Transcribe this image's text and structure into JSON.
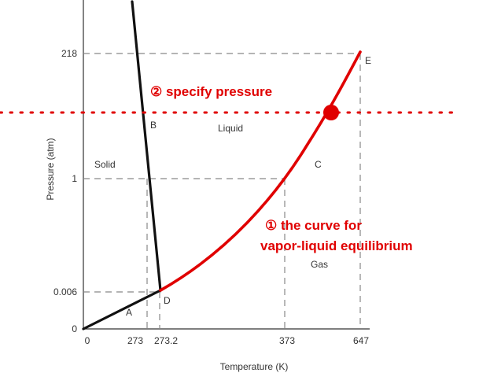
{
  "chart_data": {
    "type": "line",
    "title": "",
    "xlabel": "Temperature (K)",
    "ylabel": "Pressure (atm)",
    "x_ticks": [
      "0",
      "273",
      "273.2",
      "373",
      "647"
    ],
    "y_ticks": [
      "0",
      "0.006",
      "1",
      "218"
    ],
    "scale": "schematic (not to scale)",
    "grid": false,
    "points": [
      {
        "label": "A",
        "description": "sublimation curve"
      },
      {
        "label": "B",
        "description": "melting curve"
      },
      {
        "label": "C",
        "description": "vaporization curve"
      },
      {
        "label": "D",
        "description": "triple point",
        "x": 273.2,
        "y": 0.006
      },
      {
        "label": "E",
        "description": "critical point",
        "x": 647,
        "y": 218
      }
    ],
    "regions": [
      "Solid",
      "Liquid",
      "Gas"
    ],
    "series": [
      {
        "description": "solid-vapor curve",
        "x": [
          0,
          273.2
        ],
        "y": [
          0,
          0.006
        ],
        "color": "#000000"
      },
      {
        "description": "solid-liquid curve",
        "x": [
          273.2,
          273
        ],
        "y": [
          0.006,
          1
        ],
        "color": "#000000"
      },
      {
        "description": "vapor-liquid curve",
        "x": [
          273.2,
          373,
          647
        ],
        "y": [
          0.006,
          1,
          218
        ],
        "color": "#e00000"
      }
    ],
    "annotations": [
      {
        "text": "② specify pressure",
        "color": "#e00000"
      },
      {
        "text": "① the curve for",
        "color": "#e00000"
      },
      {
        "text": "vapor-liquid equilibrium",
        "color": "#e00000"
      }
    ],
    "colors": {
      "highlight": "#e00000",
      "curve": "#000000",
      "guide": "#888888"
    }
  }
}
